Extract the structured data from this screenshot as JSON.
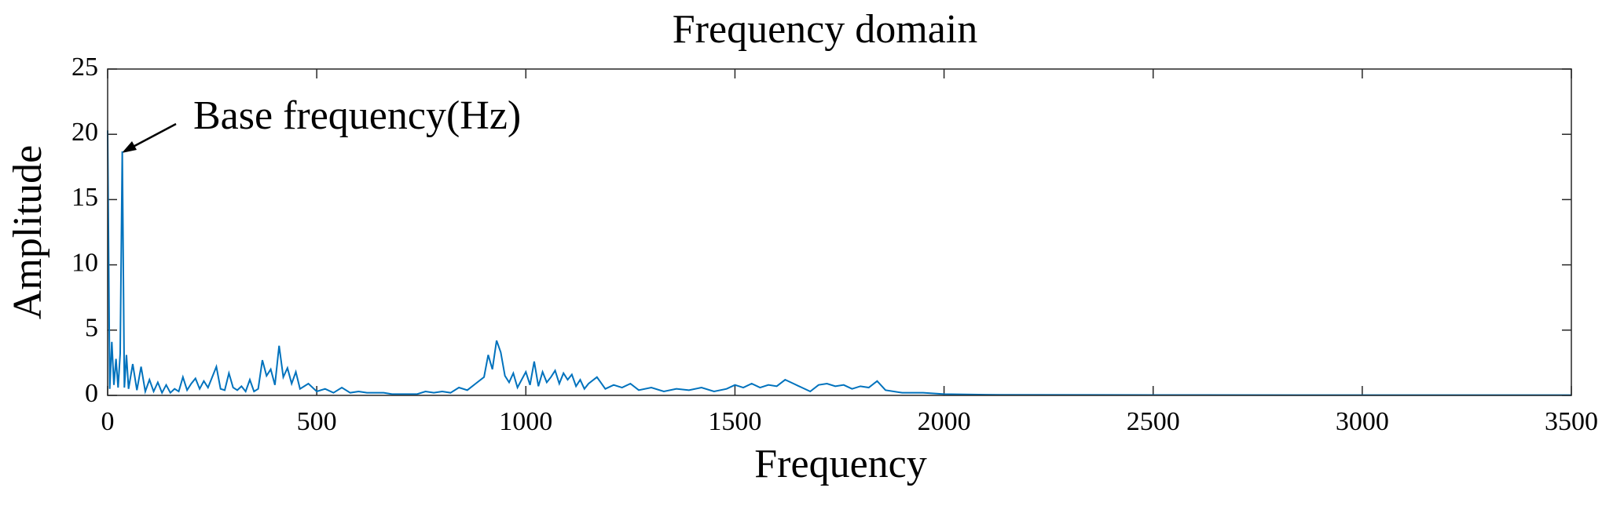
{
  "chart_data": {
    "type": "line",
    "title": "Frequency domain",
    "x_label": "Frequency",
    "y_label": "Amplitude",
    "annotation": "Base frequency(Hz)",
    "x": [
      0,
      5,
      10,
      15,
      20,
      25,
      30,
      35,
      40,
      45,
      50,
      60,
      70,
      80,
      90,
      100,
      110,
      120,
      130,
      140,
      150,
      160,
      170,
      180,
      190,
      200,
      210,
      220,
      230,
      240,
      250,
      260,
      270,
      280,
      290,
      300,
      310,
      320,
      330,
      340,
      350,
      360,
      370,
      380,
      390,
      400,
      410,
      420,
      430,
      440,
      450,
      460,
      470,
      480,
      500,
      520,
      540,
      560,
      580,
      600,
      620,
      640,
      660,
      680,
      700,
      720,
      740,
      760,
      780,
      800,
      820,
      840,
      860,
      880,
      900,
      910,
      920,
      930,
      940,
      950,
      960,
      970,
      980,
      990,
      1000,
      1010,
      1020,
      1030,
      1040,
      1050,
      1060,
      1070,
      1080,
      1090,
      1100,
      1110,
      1120,
      1130,
      1140,
      1150,
      1170,
      1190,
      1210,
      1230,
      1250,
      1270,
      1300,
      1330,
      1360,
      1390,
      1420,
      1450,
      1480,
      1500,
      1520,
      1540,
      1560,
      1580,
      1600,
      1620,
      1640,
      1660,
      1680,
      1700,
      1720,
      1740,
      1760,
      1780,
      1800,
      1820,
      1840,
      1860,
      1900,
      1950,
      2000,
      2100,
      2500,
      3000,
      3500
    ],
    "series": [
      {
        "color": "#0072bd",
        "values": [
          20.3,
          0.5,
          4.1,
          0.8,
          2.8,
          0.6,
          3.2,
          18.7,
          0.6,
          3.1,
          0.5,
          2.4,
          0.4,
          2.2,
          0.3,
          1.2,
          0.3,
          1.0,
          0.2,
          0.8,
          0.2,
          0.5,
          0.3,
          1.4,
          0.4,
          0.9,
          1.3,
          0.5,
          1.1,
          0.6,
          1.4,
          2.2,
          0.5,
          0.4,
          1.7,
          0.6,
          0.4,
          0.7,
          0.3,
          1.2,
          0.3,
          0.5,
          2.7,
          1.5,
          2.0,
          0.8,
          3.8,
          1.4,
          2.1,
          0.9,
          1.8,
          0.5,
          0.7,
          0.9,
          0.3,
          0.5,
          0.2,
          0.6,
          0.2,
          0.3,
          0.2,
          0.2,
          0.2,
          0.1,
          0.1,
          0.1,
          0.1,
          0.3,
          0.2,
          0.3,
          0.2,
          0.6,
          0.4,
          0.9,
          1.4,
          3.1,
          2.0,
          4.2,
          3.3,
          1.5,
          1.0,
          1.7,
          0.6,
          1.2,
          1.8,
          0.8,
          2.6,
          0.7,
          1.8,
          1.0,
          1.4,
          1.9,
          0.9,
          1.7,
          1.2,
          1.6,
          0.7,
          1.2,
          0.5,
          0.9,
          1.4,
          0.5,
          0.8,
          0.6,
          0.9,
          0.4,
          0.6,
          0.3,
          0.5,
          0.4,
          0.6,
          0.3,
          0.5,
          0.8,
          0.6,
          0.9,
          0.6,
          0.8,
          0.7,
          1.2,
          0.9,
          0.6,
          0.3,
          0.8,
          0.9,
          0.7,
          0.8,
          0.5,
          0.7,
          0.6,
          1.1,
          0.4,
          0.2,
          0.2,
          0.1,
          0.05,
          0.03,
          0.02,
          0.02
        ]
      }
    ],
    "xlim": [
      0,
      3500
    ],
    "xticks": [
      0,
      500,
      1000,
      1500,
      2000,
      2500,
      3000,
      3500
    ],
    "ylim": [
      0,
      25
    ],
    "yticks": [
      0,
      5,
      10,
      15,
      20,
      25
    ]
  }
}
